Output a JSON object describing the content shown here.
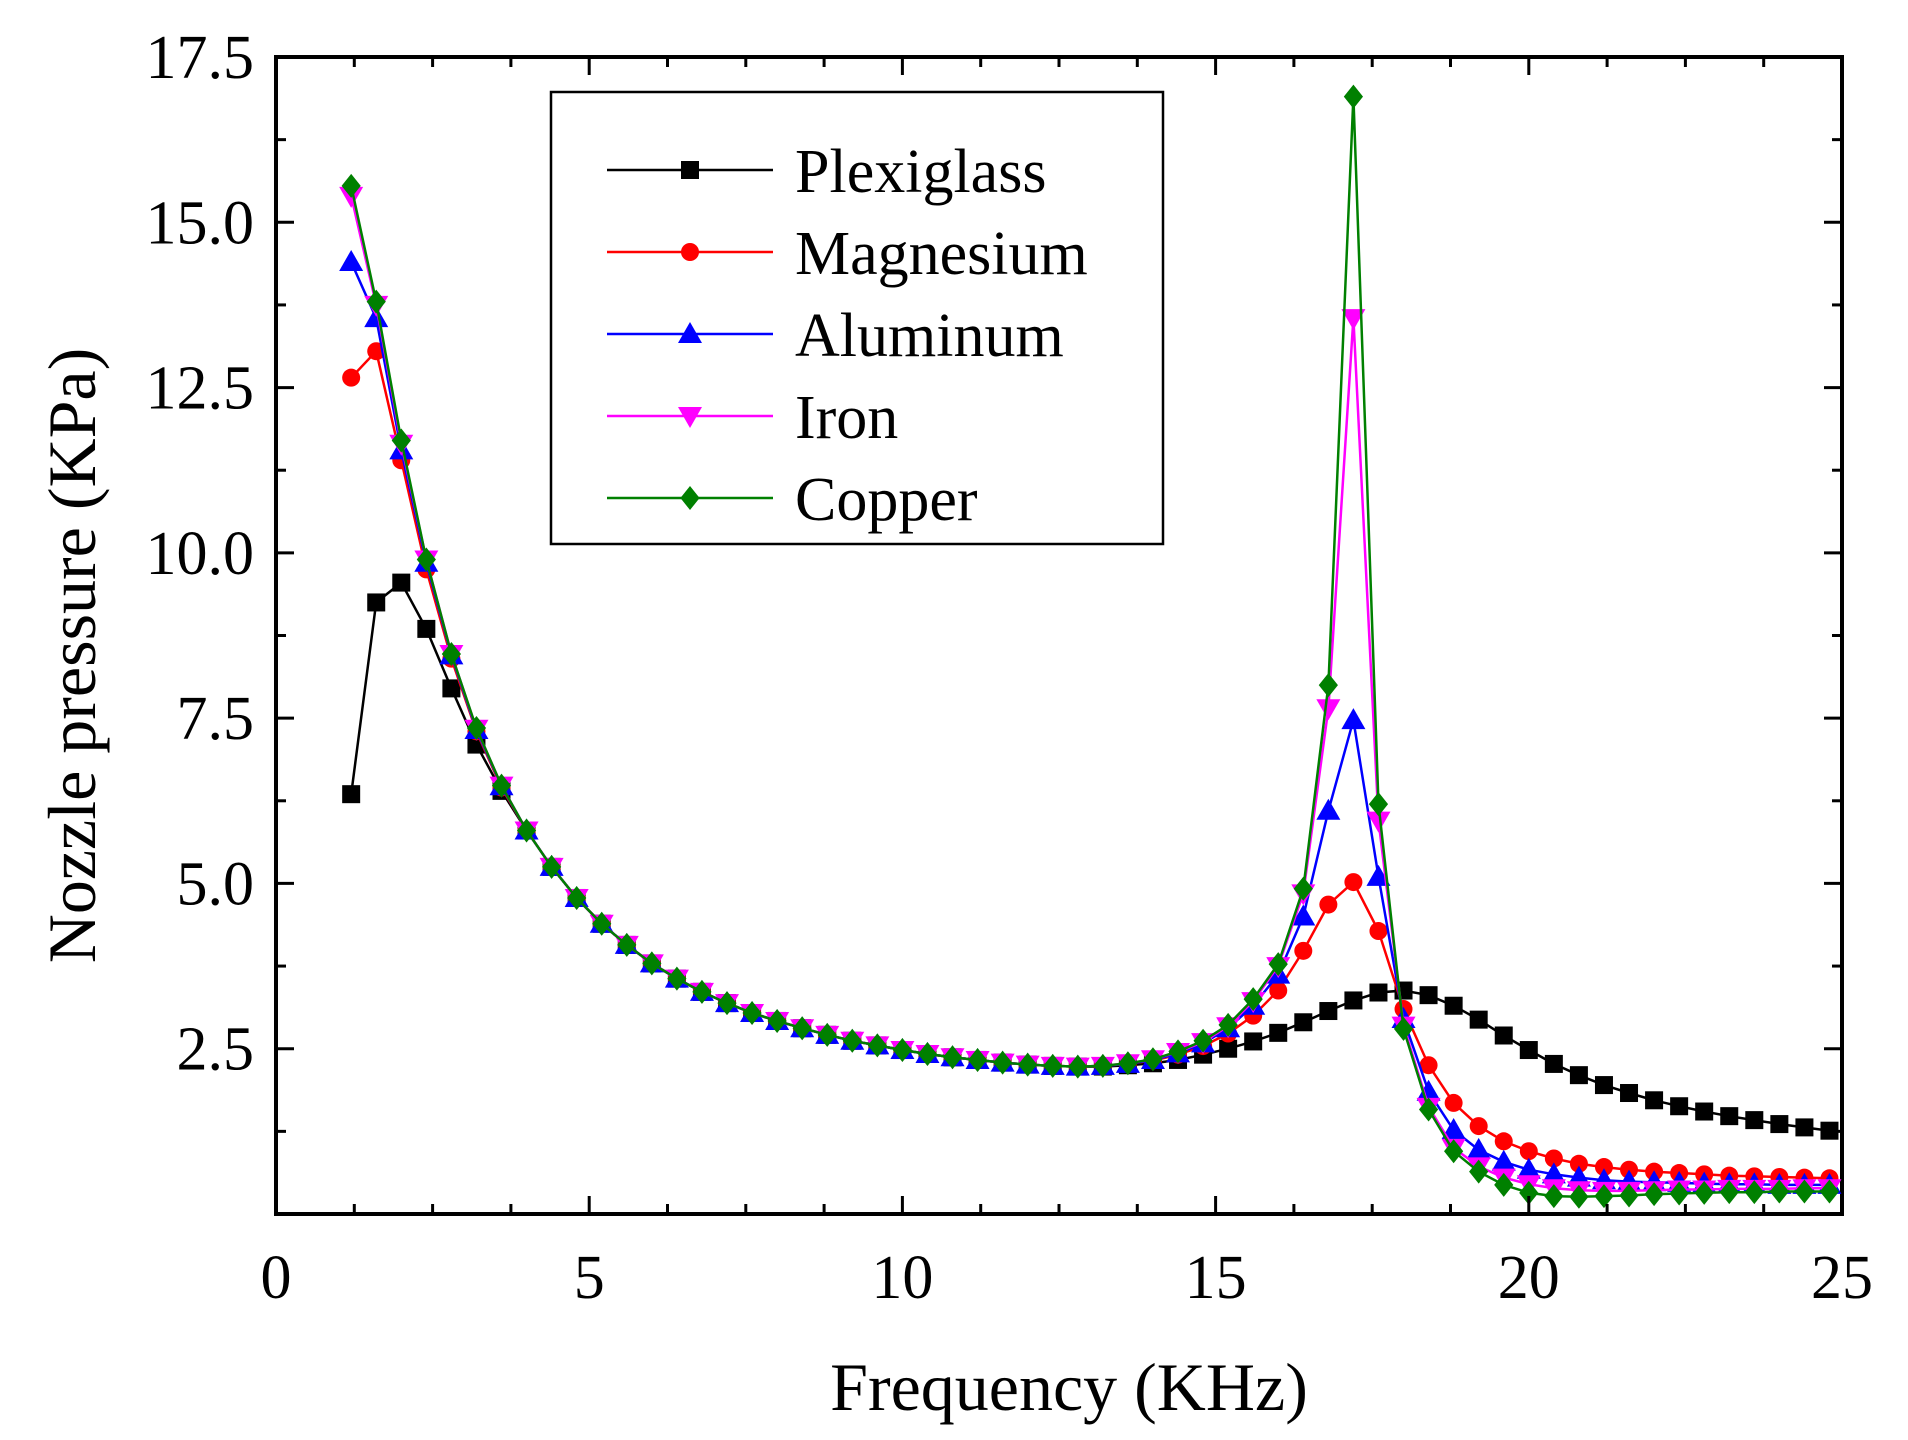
{
  "chart_data": {
    "type": "line",
    "title": "",
    "xlabel": "Frequency (KHz)",
    "ylabel": "Nozzle pressure (KPa)",
    "xlim": [
      0,
      25
    ],
    "ylim": [
      0,
      17.5
    ],
    "xticks": [
      0,
      5,
      10,
      15,
      20,
      25
    ],
    "xtick_labels": [
      "0",
      "5",
      "10",
      "15",
      "20",
      "25"
    ],
    "yticks": [
      2.5,
      5.0,
      7.5,
      10.0,
      12.5,
      15.0,
      17.5
    ],
    "ytick_labels": [
      "2.5",
      "5.0",
      "7.5",
      "10.0",
      "12.5",
      "15.0",
      "17.5"
    ],
    "grid": false,
    "legend_position": "top-center",
    "x": [
      1.2,
      1.6,
      2.0,
      2.4,
      2.8,
      3.2,
      3.6,
      4.0,
      4.4,
      4.8,
      5.2,
      5.6,
      6.0,
      6.4,
      6.8,
      7.2,
      7.6,
      8.0,
      8.4,
      8.8,
      9.2,
      9.6,
      10.0,
      10.4,
      10.8,
      11.2,
      11.6,
      12.0,
      12.4,
      12.8,
      13.2,
      13.6,
      14.0,
      14.4,
      14.8,
      15.2,
      15.6,
      16.0,
      16.4,
      16.8,
      17.2,
      17.6,
      18.0,
      18.4,
      18.8,
      19.2,
      19.6,
      20.0,
      20.4,
      20.8,
      21.2,
      21.6,
      22.0,
      22.4,
      22.8,
      23.2,
      23.6,
      24.0,
      24.4,
      24.8
    ],
    "series": [
      {
        "name": "Plexiglass",
        "color": "#000000",
        "marker": "square",
        "values": [
          6.35,
          9.25,
          9.55,
          8.85,
          7.95,
          7.1,
          6.4,
          5.8,
          5.25,
          4.78,
          4.39,
          4.07,
          3.79,
          3.56,
          3.36,
          3.19,
          3.04,
          2.92,
          2.81,
          2.71,
          2.62,
          2.55,
          2.48,
          2.42,
          2.37,
          2.33,
          2.29,
          2.26,
          2.24,
          2.23,
          2.23,
          2.25,
          2.28,
          2.33,
          2.41,
          2.5,
          2.61,
          2.74,
          2.9,
          3.07,
          3.23,
          3.35,
          3.38,
          3.31,
          3.15,
          2.94,
          2.7,
          2.48,
          2.27,
          2.1,
          1.95,
          1.83,
          1.72,
          1.63,
          1.55,
          1.48,
          1.42,
          1.36,
          1.31,
          1.26
        ]
      },
      {
        "name": "Magnesium",
        "color": "#ff0000",
        "marker": "circle",
        "values": [
          12.65,
          13.05,
          11.4,
          9.75,
          8.4,
          7.3,
          6.45,
          5.8,
          5.25,
          4.78,
          4.39,
          4.07,
          3.79,
          3.56,
          3.36,
          3.19,
          3.04,
          2.92,
          2.81,
          2.71,
          2.62,
          2.55,
          2.48,
          2.42,
          2.37,
          2.33,
          2.29,
          2.26,
          2.24,
          2.23,
          2.24,
          2.27,
          2.32,
          2.41,
          2.54,
          2.73,
          3.0,
          3.38,
          3.98,
          4.68,
          5.02,
          4.28,
          3.1,
          2.25,
          1.68,
          1.33,
          1.1,
          0.95,
          0.84,
          0.76,
          0.71,
          0.67,
          0.64,
          0.62,
          0.6,
          0.58,
          0.57,
          0.56,
          0.55,
          0.54
        ]
      },
      {
        "name": "Aluminum",
        "color": "#0000ff",
        "marker": "triangle-up",
        "values": [
          14.4,
          13.55,
          11.55,
          9.85,
          8.45,
          7.32,
          6.47,
          5.8,
          5.25,
          4.78,
          4.39,
          4.07,
          3.79,
          3.56,
          3.36,
          3.19,
          3.04,
          2.92,
          2.81,
          2.71,
          2.62,
          2.55,
          2.48,
          2.42,
          2.37,
          2.33,
          2.29,
          2.26,
          2.24,
          2.23,
          2.24,
          2.27,
          2.33,
          2.43,
          2.58,
          2.81,
          3.15,
          3.62,
          4.5,
          6.1,
          7.47,
          5.1,
          2.95,
          1.85,
          1.27,
          0.97,
          0.79,
          0.67,
          0.6,
          0.55,
          0.51,
          0.49,
          0.48,
          0.47,
          0.46,
          0.45,
          0.45,
          0.44,
          0.44,
          0.44
        ]
      },
      {
        "name": "Iron",
        "color": "#ff00ff",
        "marker": "triangle-down",
        "values": [
          15.4,
          13.75,
          11.65,
          9.9,
          8.47,
          7.34,
          6.48,
          5.8,
          5.25,
          4.78,
          4.39,
          4.07,
          3.79,
          3.56,
          3.36,
          3.19,
          3.04,
          2.92,
          2.81,
          2.71,
          2.62,
          2.55,
          2.48,
          2.42,
          2.37,
          2.33,
          2.29,
          2.26,
          2.24,
          2.23,
          2.24,
          2.28,
          2.34,
          2.45,
          2.6,
          2.84,
          3.22,
          3.75,
          4.85,
          7.65,
          13.55,
          5.95,
          2.85,
          1.62,
          1.0,
          0.72,
          0.55,
          0.45,
          0.39,
          0.36,
          0.35,
          0.35,
          0.36,
          0.37,
          0.37,
          0.38,
          0.38,
          0.38,
          0.39,
          0.39
        ]
      },
      {
        "name": "Copper",
        "color": "#008000",
        "marker": "diamond",
        "values": [
          15.55,
          13.8,
          11.7,
          9.9,
          8.47,
          7.35,
          6.48,
          5.8,
          5.25,
          4.78,
          4.39,
          4.07,
          3.79,
          3.56,
          3.36,
          3.19,
          3.04,
          2.92,
          2.81,
          2.71,
          2.62,
          2.55,
          2.48,
          2.42,
          2.37,
          2.33,
          2.29,
          2.26,
          2.24,
          2.23,
          2.24,
          2.28,
          2.34,
          2.46,
          2.62,
          2.86,
          3.25,
          3.78,
          4.92,
          8.0,
          16.9,
          6.2,
          2.8,
          1.58,
          0.95,
          0.64,
          0.44,
          0.32,
          0.27,
          0.26,
          0.27,
          0.28,
          0.3,
          0.31,
          0.32,
          0.33,
          0.33,
          0.34,
          0.34,
          0.34
        ]
      }
    ]
  }
}
